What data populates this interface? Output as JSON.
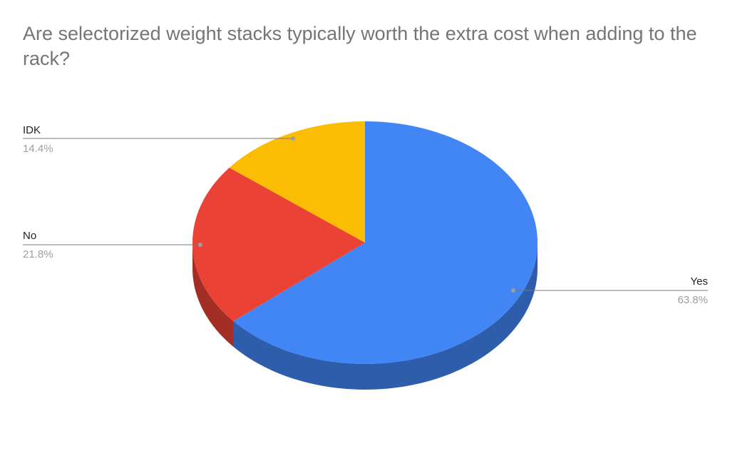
{
  "chart_data": {
    "type": "pie",
    "style": "3d",
    "title": "Are selectorized weight stacks typically worth the extra cost when adding to the rack?",
    "slices": [
      {
        "label": "Yes",
        "value": 63.8,
        "value_label": "63.8%",
        "color": "#4285f4",
        "side_color": "#2d5dab"
      },
      {
        "label": "No",
        "value": 21.8,
        "value_label": "21.8%",
        "color": "#ea4335",
        "side_color": "#a32e25"
      },
      {
        "label": "IDK",
        "value": 14.4,
        "value_label": "14.4%",
        "color": "#fbbc04",
        "side_color": "#b08303"
      }
    ],
    "legend": "labels with leader lines"
  }
}
